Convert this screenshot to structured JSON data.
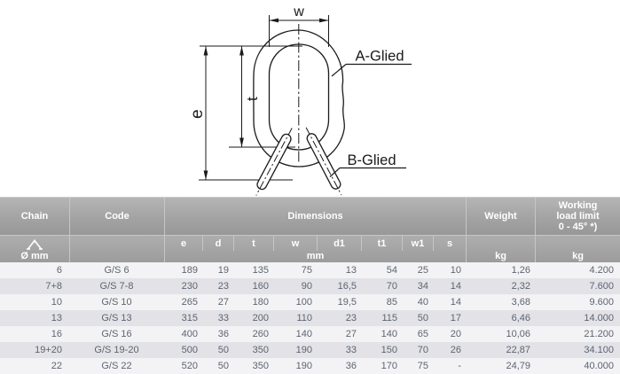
{
  "diagram": {
    "dim_w_label": "w",
    "dim_e_label": "e",
    "dim_t_label": "t",
    "a_glied_label": "A-Glied",
    "b_glied_label": "B-Glied"
  },
  "table": {
    "header": {
      "chain": "Chain",
      "code": "Code",
      "dimensions": "Dimensions",
      "weight": "Weight",
      "wll_line1": "Working",
      "wll_line2": "load limit",
      "wll_line3": "0 - 45° *)"
    },
    "subheader": {
      "chain_icon": "chain-sling-icon",
      "chain_unit": "Ø mm",
      "dim_cols": [
        "e",
        "d",
        "t",
        "w",
        "d1",
        "t1",
        "w1",
        "s"
      ],
      "dim_unit": "mm",
      "weight_unit": "kg",
      "wll_unit": "kg"
    },
    "columns": [
      "chain",
      "code",
      "e",
      "d",
      "t",
      "w",
      "d1",
      "t1",
      "w1",
      "s",
      "weight",
      "wll"
    ],
    "rows": [
      {
        "chain": "6",
        "code": "G/S 6",
        "e": "189",
        "d": "19",
        "t": "135",
        "w": "75",
        "d1": "13",
        "t1": "54",
        "w1": "25",
        "s": "10",
        "weight": "1,26",
        "wll": "4.200"
      },
      {
        "chain": "7+8",
        "code": "G/S 7-8",
        "e": "230",
        "d": "23",
        "t": "160",
        "w": "90",
        "d1": "16,5",
        "t1": "70",
        "w1": "34",
        "s": "14",
        "weight": "2,32",
        "wll": "7.600"
      },
      {
        "chain": "10",
        "code": "G/S 10",
        "e": "265",
        "d": "27",
        "t": "180",
        "w": "100",
        "d1": "19,5",
        "t1": "85",
        "w1": "40",
        "s": "14",
        "weight": "3,68",
        "wll": "9.600"
      },
      {
        "chain": "13",
        "code": "G/S 13",
        "e": "315",
        "d": "33",
        "t": "200",
        "w": "110",
        "d1": "23",
        "t1": "115",
        "w1": "50",
        "s": "17",
        "weight": "6,46",
        "wll": "14.000"
      },
      {
        "chain": "16",
        "code": "G/S 16",
        "e": "400",
        "d": "36",
        "t": "260",
        "w": "140",
        "d1": "27",
        "t1": "140",
        "w1": "65",
        "s": "20",
        "weight": "10,06",
        "wll": "21.200"
      },
      {
        "chain": "19+20",
        "code": "G/S 19-20",
        "e": "500",
        "d": "50",
        "t": "350",
        "w": "190",
        "d1": "33",
        "t1": "150",
        "w1": "70",
        "s": "26",
        "weight": "22,87",
        "wll": "34.100"
      },
      {
        "chain": "22",
        "code": "G/S 22",
        "e": "520",
        "d": "50",
        "t": "350",
        "w": "190",
        "d1": "36",
        "t1": "170",
        "w1": "75",
        "s": "-",
        "weight": "24,79",
        "wll": "40.000"
      }
    ],
    "colors": {
      "header_bg_top": "#b5b5b5",
      "header_bg_bottom": "#989898",
      "header_text": "#ffffff",
      "row_odd": "#f3f3f5",
      "row_even": "#e2e2e7",
      "row_text": "#5d6470",
      "separator": "#c6c6c6",
      "drawing_line": "#1a1a1a"
    }
  }
}
